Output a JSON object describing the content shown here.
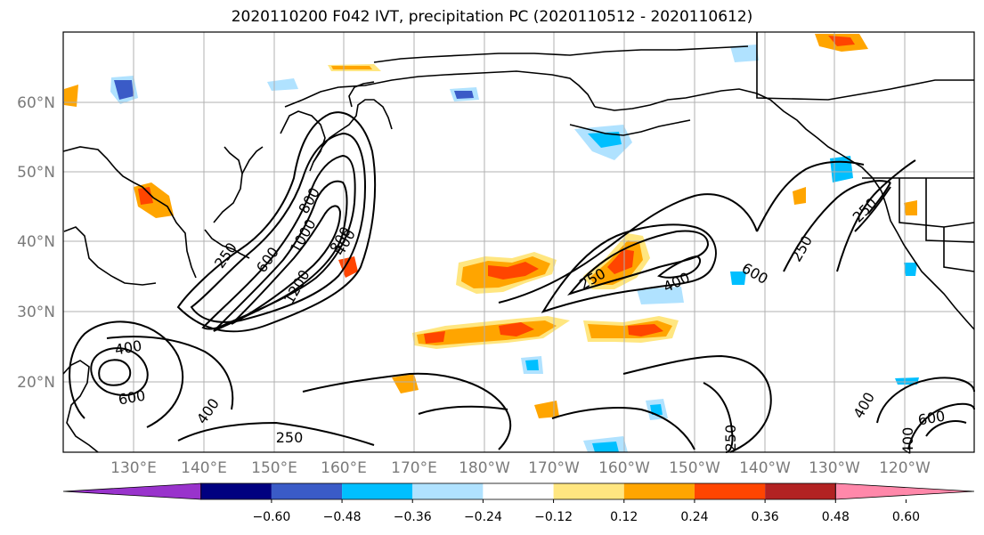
{
  "title": "2020110200 F042 IVT, precipitation PC (2020110512 - 2020110612)",
  "map": {
    "lon_labels": [
      "130°E",
      "140°E",
      "150°E",
      "160°E",
      "170°E",
      "180°W",
      "170°W",
      "160°W",
      "150°W",
      "140°W",
      "130°W",
      "120°W"
    ],
    "lat_labels": [
      "60°N",
      "50°N",
      "40°N",
      "30°N",
      "20°N"
    ],
    "contour_labels": [
      "250",
      "400",
      "600",
      "800",
      "1000",
      "1200",
      "400",
      "600",
      "250",
      "400",
      "600",
      "250",
      "250",
      "400",
      "250",
      "400",
      "600",
      "250",
      "400",
      "800"
    ],
    "coastline_color": "#000000",
    "grid_color": "#b0b0b0"
  },
  "colorbar": {
    "tick_labels": [
      "−0.60",
      "−0.48",
      "−0.36",
      "−0.24",
      "−0.12",
      "0.12",
      "0.24",
      "0.36",
      "0.48",
      "0.60"
    ],
    "colors": [
      "#9933cc",
      "#000080",
      "#3a5bc7",
      "#00bfff",
      "#b0e2ff",
      "#ffffff",
      "#ffe680",
      "#ffa500",
      "#ff4500",
      "#b22222",
      "#ff88aa"
    ]
  }
}
